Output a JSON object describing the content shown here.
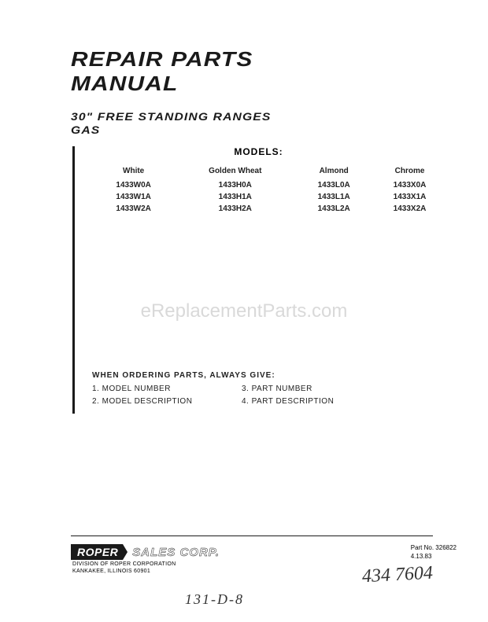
{
  "title": {
    "line1": "REPAIR PARTS",
    "line2": "MANUAL"
  },
  "subtitle": {
    "line1": "30\" FREE STANDING RANGES",
    "line2": "GAS"
  },
  "models": {
    "header": "MODELS:",
    "columns": [
      "White",
      "Golden Wheat",
      "Almond",
      "Chrome"
    ],
    "rows": [
      [
        "1433W0A",
        "1433H0A",
        "1433L0A",
        "1433X0A"
      ],
      [
        "1433W1A",
        "1433H1A",
        "1433L1A",
        "1433X1A"
      ],
      [
        "1433W2A",
        "1433H2A",
        "1433L2A",
        "1433X2A"
      ]
    ]
  },
  "ordering": {
    "title": "WHEN ORDERING PARTS, ALWAYS GIVE:",
    "items": [
      "1. MODEL NUMBER",
      "3. PART NUMBER",
      "2. MODEL DESCRIPTION",
      "4. PART DESCRIPTION"
    ]
  },
  "footer": {
    "logo": "ROPER",
    "company": "SALES CORP.",
    "division_line1": "DIVISION OF ROPER CORPORATION",
    "division_line2": "KANKAKEE, ILLINOIS 60901",
    "part_no": "Part No. 326822",
    "date": "4.13.83"
  },
  "handwriting": {
    "num1": "434 7604",
    "num2": "131-D-8"
  },
  "watermark": "eReplacementParts.com",
  "colors": {
    "text": "#1a1a1a",
    "bg": "#ffffff",
    "watermark": "rgba(120,120,120,0.28)"
  }
}
